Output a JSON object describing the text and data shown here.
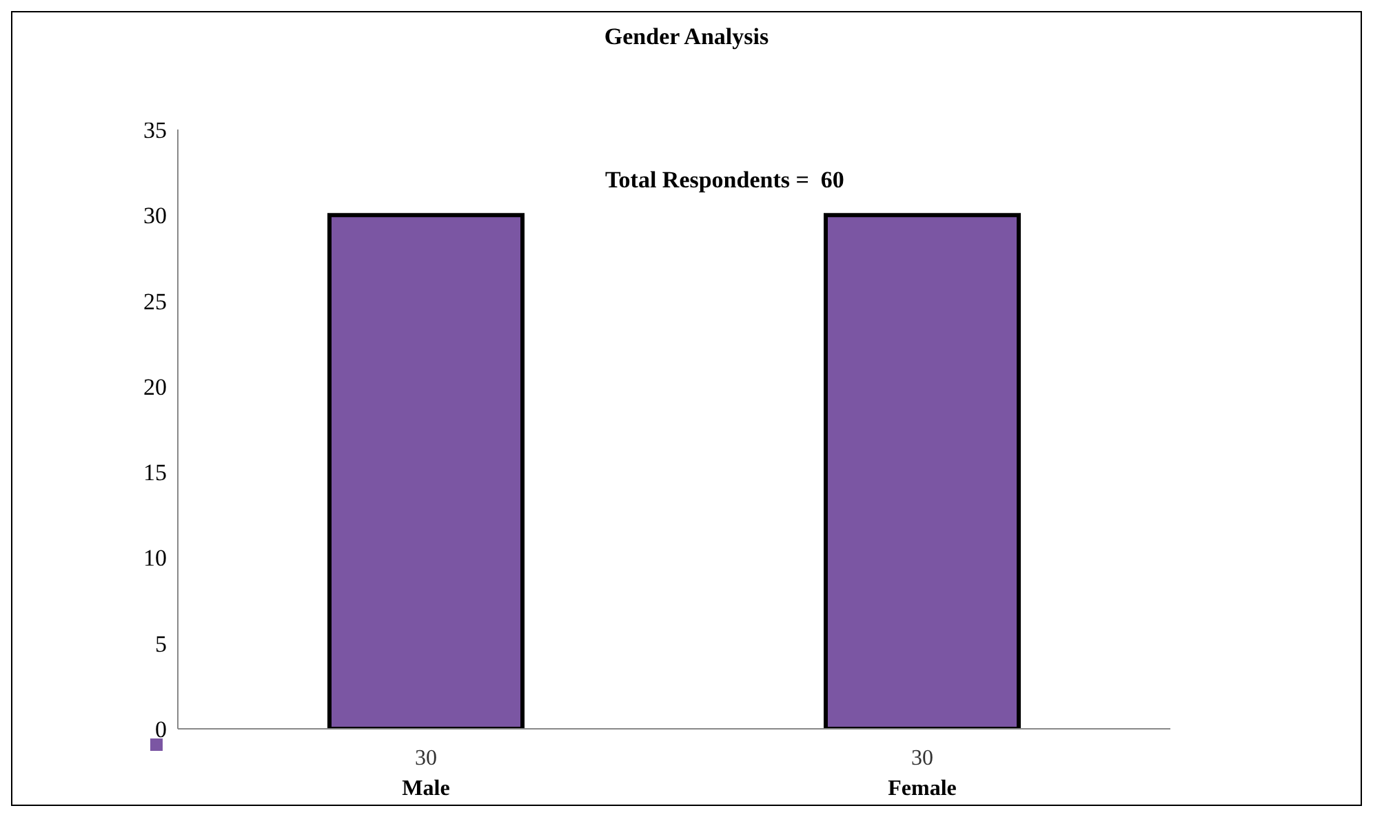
{
  "chart_data": {
    "type": "bar",
    "title": "Gender Analysis",
    "categories": [
      "Male",
      "Female"
    ],
    "values": [
      30,
      30
    ],
    "color": "#7b56a3",
    "ylim": [
      0,
      35
    ],
    "yticks": [
      0,
      5,
      10,
      15,
      20,
      25,
      30,
      35
    ],
    "data_labels": true,
    "grid": false,
    "legend": false,
    "annotations": [
      "Total Respondents =  60"
    ]
  }
}
